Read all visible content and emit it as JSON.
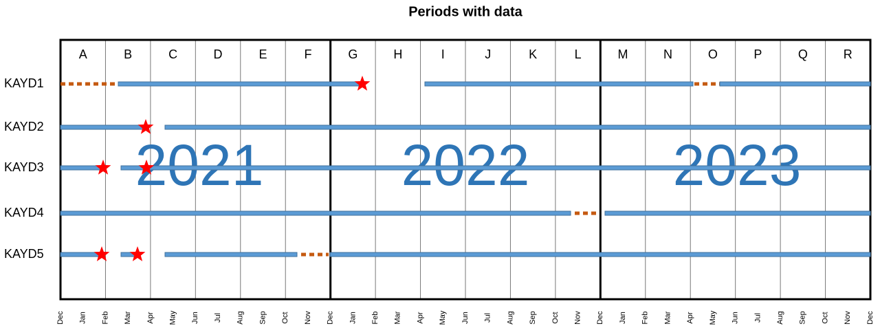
{
  "title": "Periods with data",
  "columns": [
    "A",
    "B",
    "C",
    "D",
    "E",
    "F",
    "G",
    "H",
    "I",
    "J",
    "K",
    "L",
    "M",
    "N",
    "O",
    "P",
    "Q",
    "R"
  ],
  "rows": [
    "KAYD1",
    "KAYD2",
    "KAYD3",
    "KAYD4",
    "KAYD5"
  ],
  "years": [
    "2021",
    "2022",
    "2023"
  ],
  "months": [
    "Dec",
    "Jan",
    "Feb",
    "Mar",
    "Apr",
    "May",
    "Jun",
    "Jul",
    "Aug",
    "Sep",
    "Oct",
    "Nov",
    "Dec",
    "Jan",
    "Feb",
    "Mar",
    "Apr",
    "May",
    "Jun",
    "Jul",
    "Aug",
    "Sep",
    "Oct",
    "Nov",
    "Dec",
    "Jan",
    "Feb",
    "Mar",
    "Apr",
    "May",
    "Jun",
    "Jul",
    "Aug",
    "Sep",
    "Oct",
    "Nov",
    "Dec"
  ]
}
